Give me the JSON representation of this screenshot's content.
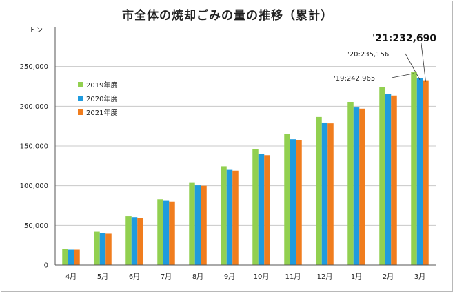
{
  "chart_data": {
    "type": "bar",
    "title": "市全体の焼却ごみの量の推移（累計）",
    "ylabel": "トン",
    "xlabel": "",
    "ylim": [
      0,
      300000
    ],
    "yticks": [
      0,
      50000,
      100000,
      150000,
      200000,
      250000
    ],
    "ytick_labels": [
      "0",
      "50,000",
      "100,000",
      "150,000",
      "200,000",
      "250,000"
    ],
    "grid": true,
    "legend_position": "left",
    "categories": [
      "4月",
      "5月",
      "6月",
      "7月",
      "8月",
      "9月",
      "10月",
      "11月",
      "12月",
      "1月",
      "2月",
      "3月"
    ],
    "series": [
      {
        "name": "2019年度",
        "color": "#92d050",
        "values": [
          20000,
          42000,
          61500,
          83000,
          103500,
          124500,
          146000,
          165500,
          186500,
          205500,
          224000,
          242965
        ]
      },
      {
        "name": "2020年度",
        "color": "#1f9bde",
        "values": [
          19500,
          40000,
          60500,
          81000,
          100500,
          120000,
          140000,
          158500,
          179500,
          198500,
          215500,
          235156
        ]
      },
      {
        "name": "2021年度",
        "color": "#f07d1e",
        "values": [
          19500,
          39500,
          59500,
          80000,
          100000,
          119000,
          138500,
          157500,
          178500,
          197000,
          213500,
          232690
        ]
      }
    ],
    "annotations": [
      {
        "text": "'19:242,965",
        "series": 0,
        "index": 11
      },
      {
        "text": "'20:235,156",
        "series": 1,
        "index": 11
      },
      {
        "text": "'21:232,690",
        "series": 2,
        "index": 11
      }
    ]
  }
}
